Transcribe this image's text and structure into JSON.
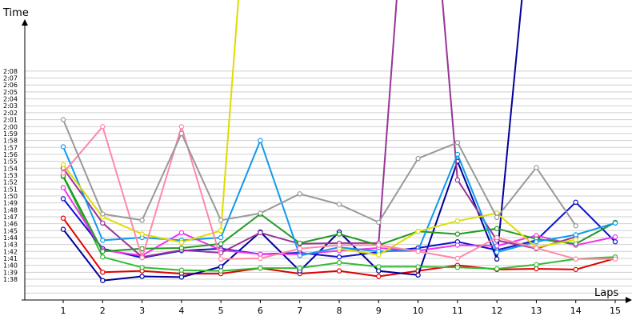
{
  "chart_data": {
    "type": "line",
    "title": "",
    "xlabel": "Laps",
    "ylabel": "Time",
    "x": [
      1,
      2,
      3,
      4,
      5,
      6,
      7,
      8,
      9,
      10,
      11,
      12,
      13,
      14,
      15
    ],
    "xlim": [
      0,
      15.2
    ],
    "ylim_seconds": [
      95,
      130
    ],
    "y_tick_labels": [
      "1:38",
      "1:39",
      "1:40",
      "1:41",
      "1:42",
      "1:43",
      "1:44",
      "1:45",
      "1:46",
      "1:47",
      "1:48",
      "1:49",
      "1:50",
      "1:51",
      "1:52",
      "1:53",
      "1:54",
      "1:55",
      "1:56",
      "1:57",
      "1:58",
      "1:59",
      "2:00",
      "2:01",
      "2:02",
      "2:03",
      "2:04",
      "2:05",
      "2:06",
      "2:07",
      "2:08"
    ],
    "x_tick_labels": [
      "1",
      "2",
      "3",
      "4",
      "5",
      "6",
      "7",
      "8",
      "9",
      "10",
      "11",
      "12",
      "13",
      "14",
      "15"
    ],
    "grid": "horizontal",
    "legend": "none",
    "series": [
      {
        "color": "#e00000",
        "values": [
          "1:46.8",
          "1:39.0",
          "1:39.2",
          "1:38.8",
          "1:38.8",
          "1:39.6",
          "1:38.8",
          "1:39.2",
          "1:38.4",
          "1:39.2",
          "1:40.0",
          "1:39.4",
          "1:39.5",
          "1:39.4",
          "1:41.0"
        ]
      },
      {
        "color": "#000099",
        "values": [
          "1:45.2",
          "1:37.8",
          "1:38.4",
          "1:38.3",
          "1:39.8",
          "1:44.8",
          "1:39.2",
          "1:44.8",
          "1:39.2",
          "1:38.6",
          "1:55.0",
          "1:40.9",
          "2:40.0",
          null,
          null
        ]
      },
      {
        "color": "#33bb33",
        "values": [
          "1:52.8",
          "1:41.2",
          "1:39.7",
          "1:39.3",
          "1:39.2",
          "1:39.6",
          "1:39.6",
          "1:40.4",
          "1:39.8",
          "1:39.8",
          "1:39.7",
          "1:39.5",
          "1:40.1",
          "1:40.9",
          "1:41.2"
        ]
      },
      {
        "color": "#1111cc",
        "values": [
          "1:49.6",
          "1:42.4",
          "1:41.1",
          "1:42.1",
          "1:42.4",
          "1:41.6",
          "1:41.8",
          "1:41.2",
          "1:41.9",
          "1:42.5",
          "1:43.4",
          "1:42.2",
          "1:43.6",
          "1:49.1",
          "1:43.4"
        ]
      },
      {
        "color": "#ee33ee",
        "values": [
          "1:51.2",
          "1:42.2",
          "1:41.4",
          "1:44.7",
          "1:42.2",
          "1:41.6",
          "1:41.6",
          "1:42.1",
          "1:42.5",
          "1:42.1",
          "1:42.9",
          "1:42.8",
          "1:44.3",
          "1:42.9",
          "1:44.1"
        ]
      },
      {
        "color": "#993399",
        "values": [
          "1:54.0",
          "1:46.1",
          "1:41.2",
          "1:42.2",
          "1:41.8",
          "1:44.7",
          "1:43.1",
          "1:43.2",
          "1:43.2",
          "3:00.0",
          "1:52.3",
          "1:43.6",
          "1:42.4",
          "1:44.1",
          null
        ]
      },
      {
        "color": "#229922",
        "values": [
          "1:52.9",
          "1:42.0",
          "1:42.4",
          "1:42.5",
          "1:43.1",
          "1:47.4",
          "1:43.2",
          "1:44.5",
          "1:42.9",
          "1:44.9",
          "1:44.5",
          "1:45.3",
          "1:43.8",
          "1:43.1",
          "1:46.2"
        ]
      },
      {
        "color": "#1199ee",
        "values": [
          "1:57.1",
          "1:43.6",
          "1:44.0",
          "1:43.6",
          "1:44.0",
          "1:58.0",
          "1:41.4",
          "1:42.6",
          "1:42.0",
          "1:42.1",
          "1:56.0",
          "1:41.9",
          "1:43.4",
          "1:44.4",
          "1:46.1"
        ]
      },
      {
        "color": "#dddd00",
        "values": [
          "1:54.5",
          "1:47.0",
          "1:44.5",
          "1:43.3",
          "1:45.0",
          "3:00.0",
          null,
          "1:42.4",
          "1:41.5",
          "1:44.9",
          "1:46.4",
          "1:47.5",
          "1:42.6",
          "1:43.7",
          null
        ]
      },
      {
        "color": "#ff88aa",
        "values": [
          "1:53.3",
          "2:00.0",
          "1:41.1",
          "2:00.0",
          "1:40.9",
          "1:41.0",
          "1:42.4",
          "1:42.9",
          "1:42.9",
          "1:42.0",
          "1:41.0",
          "1:44.0",
          "1:42.5",
          "1:40.9",
          "1:40.9"
        ]
      },
      {
        "color": "#999999",
        "values": [
          "2:01.0",
          "1:47.4",
          "1:46.5",
          "1:59.0",
          "1:46.5",
          "1:47.5",
          "1:50.3",
          "1:48.8",
          "1:46.2",
          "1:55.4",
          "1:57.7",
          "1:46.9",
          "1:54.1",
          "1:45.7",
          null
        ]
      }
    ]
  }
}
